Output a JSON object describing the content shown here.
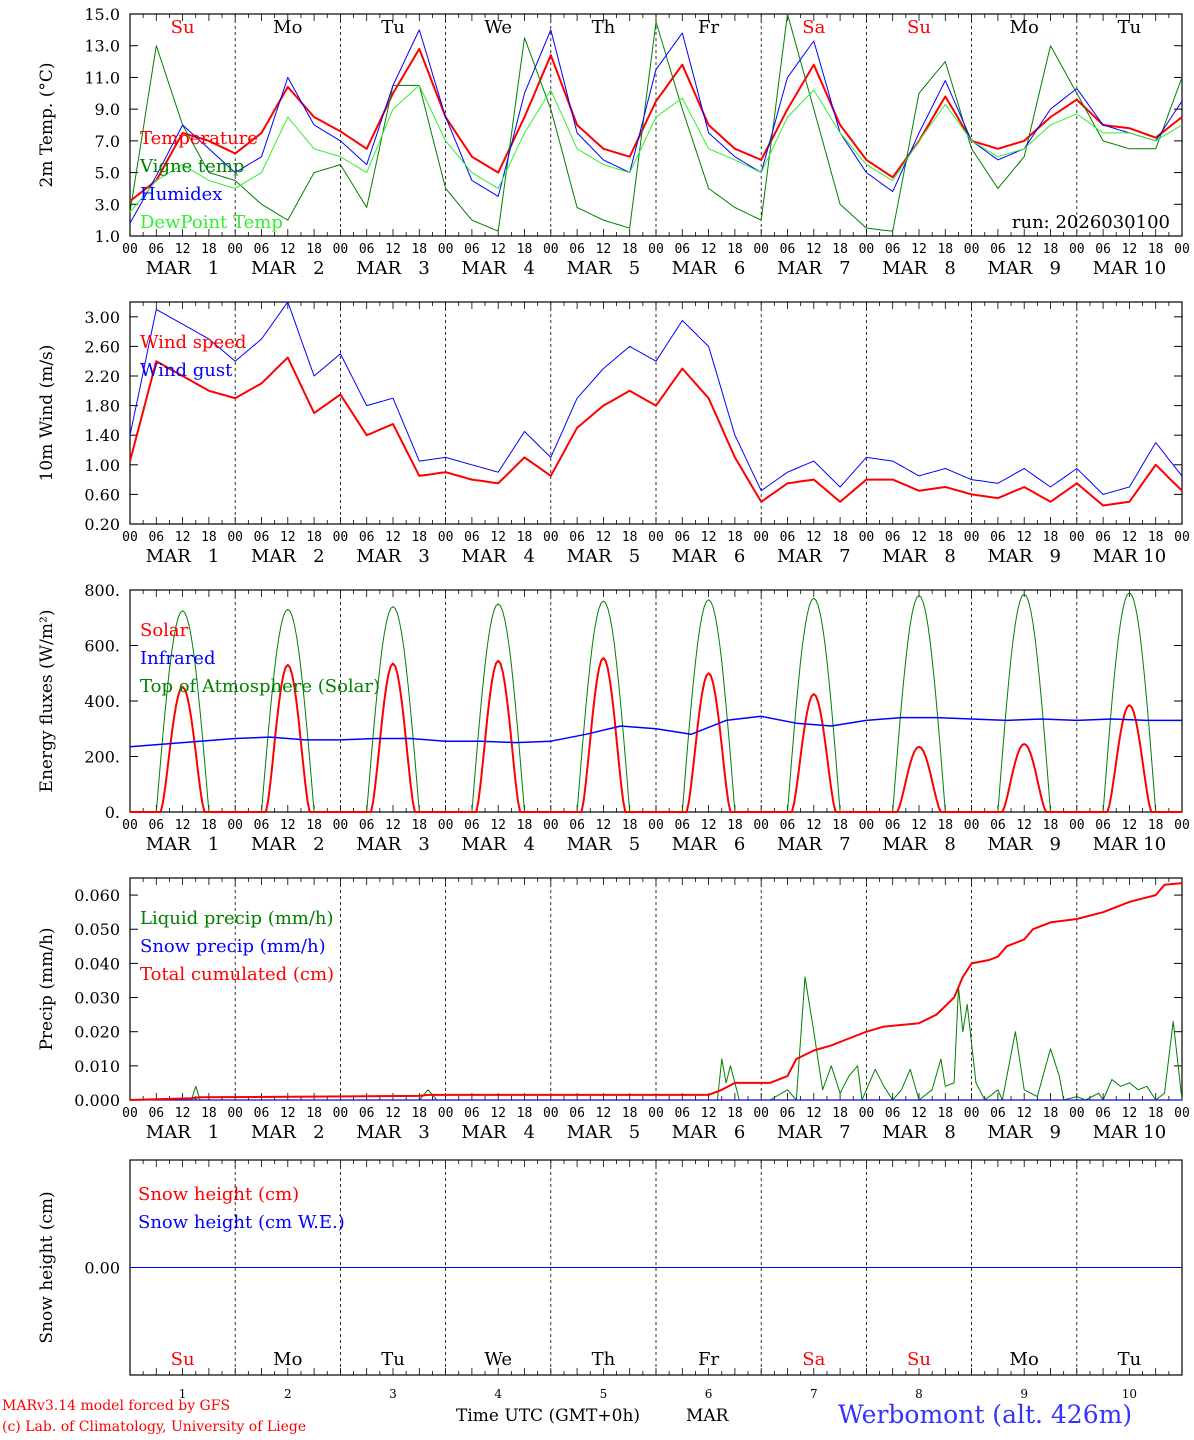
{
  "run_label": "run: 2026030100",
  "day_abbrev": [
    "Su",
    "Mo",
    "Tu",
    "We",
    "Th",
    "Fr",
    "Sa",
    "Su",
    "Mo",
    "Tu"
  ],
  "day_colors": [
    "#ff0000",
    "#000000",
    "#000000",
    "#000000",
    "#000000",
    "#000000",
    "#ff0000",
    "#ff0000",
    "#000000",
    "#000000"
  ],
  "date_labels": [
    "MAR   1",
    "MAR   2",
    "MAR   3",
    "MAR   4",
    "MAR   5",
    "MAR   6",
    "MAR   7",
    "MAR   8",
    "MAR   9",
    "MAR 10"
  ],
  "hour_ticks": [
    "00",
    "06",
    "12",
    "18"
  ],
  "bottom_day_numbers": [
    "1",
    "2",
    "3",
    "4",
    "5",
    "6",
    "7",
    "8",
    "9",
    "10"
  ],
  "footer": {
    "model_line": "MARv3.14 model forced by GFS",
    "credit_line": "(c) Lab. of Climatology, University of Liege",
    "time_label": "Time UTC (GMT+0h)",
    "month_label": "MAR",
    "station": "Werbomont (alt. 426m)"
  },
  "chart_data": [
    {
      "id": "temp",
      "type": "line",
      "ylabel": "2m Temp. (°C)",
      "ylim": [
        1.0,
        15.0
      ],
      "yticks": [
        "1.0",
        "3.0",
        "5.0",
        "7.0",
        "9.0",
        "11.0",
        "13.0",
        "15.0"
      ],
      "ytick_values": [
        1,
        3,
        5,
        7,
        9,
        11,
        13,
        15
      ],
      "x_hours": [
        0,
        6,
        12,
        18,
        24,
        30,
        36,
        42,
        48,
        54,
        60,
        66,
        72,
        78,
        84,
        90,
        96,
        102,
        108,
        114,
        120,
        126,
        132,
        138,
        144,
        150,
        156,
        162,
        168,
        174,
        180,
        186,
        192,
        198,
        204,
        210,
        216,
        222,
        228,
        234,
        240
      ],
      "series": [
        {
          "name": "Temperature",
          "color": "#ff0000",
          "width": 2,
          "values": [
            3.2,
            4.5,
            7.5,
            7.0,
            6.2,
            7.5,
            10.4,
            8.5,
            7.6,
            6.5,
            10.0,
            12.8,
            8.5,
            6.0,
            5.0,
            8.5,
            12.4,
            8.0,
            6.5,
            6.0,
            9.5,
            11.8,
            8.0,
            6.5,
            5.8,
            9.0,
            11.8,
            8.0,
            5.8,
            4.7,
            7.0,
            9.8,
            7.0,
            6.5,
            7.0,
            8.5,
            9.6,
            8.0,
            7.8,
            7.2,
            8.5
          ]
        },
        {
          "name": "Vigne temp",
          "color": "#008000",
          "width": 1,
          "values": [
            2.5,
            13.0,
            8.0,
            5.0,
            4.5,
            3.0,
            2.0,
            5.0,
            5.5,
            2.8,
            10.5,
            10.5,
            4.0,
            2.0,
            1.3,
            13.5,
            9.0,
            2.8,
            2.0,
            1.5,
            14.5,
            9.0,
            4.0,
            2.8,
            2.0,
            15.0,
            9.0,
            3.0,
            1.5,
            1.3,
            10.0,
            12.0,
            6.5,
            4.0,
            6.0,
            13.0,
            10.0,
            7.0,
            6.5,
            6.5,
            11.0
          ]
        },
        {
          "name": "Humidex",
          "color": "#0000ff",
          "width": 1,
          "values": [
            1.8,
            4.8,
            8.0,
            6.5,
            5.0,
            6.0,
            11.0,
            8.0,
            7.0,
            5.5,
            10.5,
            14.0,
            8.5,
            4.5,
            3.5,
            10.0,
            14.0,
            7.5,
            5.8,
            5.0,
            11.5,
            13.8,
            7.5,
            6.0,
            5.0,
            11.0,
            13.3,
            7.5,
            5.0,
            3.8,
            7.5,
            10.8,
            7.0,
            5.8,
            6.5,
            9.0,
            10.3,
            8.0,
            7.5,
            7.0,
            9.5
          ]
        },
        {
          "name": "DewPoint Temp",
          "color": "#33ee33",
          "width": 1,
          "values": [
            2.5,
            4.5,
            5.5,
            4.5,
            4.0,
            5.0,
            8.5,
            6.5,
            6.0,
            5.0,
            9.0,
            10.5,
            7.0,
            5.0,
            4.0,
            7.5,
            10.2,
            6.5,
            5.5,
            5.0,
            8.5,
            9.7,
            6.5,
            5.8,
            5.0,
            8.5,
            10.2,
            7.5,
            5.5,
            4.5,
            7.0,
            9.3,
            7.0,
            6.0,
            6.5,
            8.0,
            8.7,
            7.5,
            7.5,
            7.0,
            8.0
          ]
        }
      ],
      "legend": [
        "Temperature",
        "Vigne temp",
        "Humidex",
        "DewPoint Temp"
      ],
      "legend_colors": [
        "#ff0000",
        "#008000",
        "#0000ff",
        "#33ee33"
      ]
    },
    {
      "id": "wind",
      "type": "line",
      "ylabel": "10m Wind (m/s)",
      "ylim": [
        0.2,
        3.2
      ],
      "yticks": [
        "0.20",
        "0.60",
        "1.00",
        "1.40",
        "1.80",
        "2.20",
        "2.60",
        "3.00"
      ],
      "ytick_values": [
        0.2,
        0.6,
        1.0,
        1.4,
        1.8,
        2.2,
        2.6,
        3.0
      ],
      "x_hours": [
        0,
        6,
        12,
        18,
        24,
        30,
        36,
        42,
        48,
        54,
        60,
        66,
        72,
        78,
        84,
        90,
        96,
        102,
        108,
        114,
        120,
        126,
        132,
        138,
        144,
        150,
        156,
        162,
        168,
        174,
        180,
        186,
        192,
        198,
        204,
        210,
        216,
        222,
        228,
        234,
        240
      ],
      "series": [
        {
          "name": "Wind speed",
          "color": "#ff0000",
          "width": 2,
          "values": [
            1.05,
            2.4,
            2.2,
            2.0,
            1.9,
            2.1,
            2.45,
            1.7,
            1.95,
            1.4,
            1.55,
            0.85,
            0.9,
            0.8,
            0.75,
            1.1,
            0.85,
            1.5,
            1.8,
            2.0,
            1.8,
            2.3,
            1.9,
            1.1,
            0.5,
            0.75,
            0.8,
            0.5,
            0.8,
            0.8,
            0.65,
            0.7,
            0.6,
            0.55,
            0.7,
            0.5,
            0.75,
            0.45,
            0.5,
            1.0,
            0.65
          ]
        },
        {
          "name": "Wind gust",
          "color": "#0000ff",
          "width": 1,
          "values": [
            1.4,
            3.1,
            2.9,
            2.7,
            2.4,
            2.7,
            3.2,
            2.2,
            2.5,
            1.8,
            1.9,
            1.05,
            1.1,
            1.0,
            0.9,
            1.45,
            1.1,
            1.9,
            2.3,
            2.6,
            2.4,
            2.95,
            2.6,
            1.4,
            0.65,
            0.9,
            1.05,
            0.7,
            1.1,
            1.05,
            0.85,
            0.95,
            0.8,
            0.75,
            0.95,
            0.7,
            0.95,
            0.6,
            0.7,
            1.3,
            0.85
          ]
        }
      ],
      "legend": [
        "Wind speed",
        "Wind gust"
      ],
      "legend_colors": [
        "#ff0000",
        "#0000ff"
      ]
    },
    {
      "id": "energy",
      "type": "line",
      "ylabel": "Energy fluxes (W/m²)",
      "ylim": [
        0,
        800
      ],
      "yticks": [
        "0.",
        "200.",
        "400.",
        "600.",
        "800."
      ],
      "ytick_values": [
        0,
        200,
        400,
        600,
        800
      ],
      "diurnal": {
        "toa_peaks": [
          725,
          730,
          740,
          750,
          760,
          765,
          770,
          780,
          785,
          790
        ],
        "solar_peaks": [
          450,
          530,
          535,
          545,
          555,
          500,
          425,
          235,
          245,
          385
        ],
        "infrared_values": [
          235,
          245,
          255,
          265,
          270,
          260,
          260,
          265,
          265,
          255,
          255,
          250,
          255,
          280,
          310,
          300,
          280,
          330,
          345,
          320,
          310,
          330,
          340,
          340,
          335,
          330,
          335,
          330,
          335,
          330,
          330
        ]
      },
      "legend": [
        "Solar",
        "Infrared",
        "Top of Atmosphere (Solar)"
      ],
      "legend_colors": [
        "#ff0000",
        "#0000ff",
        "#008000"
      ]
    },
    {
      "id": "precip",
      "type": "line",
      "ylabel": "Precip (mm/h)",
      "ylim": [
        0,
        0.065
      ],
      "yticks": [
        "0.000",
        "0.010",
        "0.020",
        "0.030",
        "0.040",
        "0.050",
        "0.060"
      ],
      "ytick_values": [
        0,
        0.01,
        0.02,
        0.03,
        0.04,
        0.05,
        0.06
      ],
      "series": [
        {
          "name": "Liquid precip (mm/h)",
          "color": "#008000",
          "width": 1,
          "points": [
            [
              0,
              0
            ],
            [
              14,
              0
            ],
            [
              15,
              0.004
            ],
            [
              16,
              0
            ],
            [
              66,
              0
            ],
            [
              68,
              0.003
            ],
            [
              70,
              0
            ],
            [
              134,
              0
            ],
            [
              135,
              0.012
            ],
            [
              136,
              0.005
            ],
            [
              137,
              0.01
            ],
            [
              139,
              0
            ],
            [
              146,
              0
            ],
            [
              150,
              0.003
            ],
            [
              152,
              0
            ],
            [
              154,
              0.036
            ],
            [
              156,
              0.02
            ],
            [
              158,
              0.003
            ],
            [
              160,
              0.01
            ],
            [
              162,
              0.002
            ],
            [
              164,
              0.007
            ],
            [
              166,
              0.01
            ],
            [
              167,
              0
            ],
            [
              170,
              0.009
            ],
            [
              172,
              0.004
            ],
            [
              174,
              0
            ],
            [
              176,
              0.003
            ],
            [
              178,
              0.009
            ],
            [
              180,
              0
            ],
            [
              183,
              0.003
            ],
            [
              185,
              0.012
            ],
            [
              186,
              0.004
            ],
            [
              188,
              0.005
            ],
            [
              189,
              0.033
            ],
            [
              190,
              0.02
            ],
            [
              191,
              0.028
            ],
            [
              193,
              0.005
            ],
            [
              195,
              0
            ],
            [
              198,
              0.003
            ],
            [
              199,
              0
            ],
            [
              202,
              0.02
            ],
            [
              204,
              0.003
            ],
            [
              207,
              0.001
            ],
            [
              210,
              0.015
            ],
            [
              212,
              0.007
            ],
            [
              213,
              0
            ],
            [
              216,
              0.001
            ],
            [
              218,
              0
            ],
            [
              221,
              0.002
            ],
            [
              222,
              0
            ],
            [
              224,
              0.006
            ],
            [
              226,
              0.004
            ],
            [
              228,
              0.005
            ],
            [
              230,
              0.003
            ],
            [
              232,
              0.004
            ],
            [
              234,
              0
            ],
            [
              236,
              0.002
            ],
            [
              238,
              0.023
            ],
            [
              240,
              0
            ]
          ]
        },
        {
          "name": "Snow precip (mm/h)",
          "color": "#0000ff",
          "width": 1,
          "points": [
            [
              0,
              0
            ],
            [
              240,
              0
            ]
          ]
        },
        {
          "name": "Total cumulated (cm)",
          "color": "#ff0000",
          "width": 2,
          "points": [
            [
              0,
              0
            ],
            [
              14,
              0.0005
            ],
            [
              16,
              0.0008
            ],
            [
              66,
              0.0012
            ],
            [
              68,
              0.0015
            ],
            [
              132,
              0.0015
            ],
            [
              135,
              0.003
            ],
            [
              138,
              0.005
            ],
            [
              146,
              0.005
            ],
            [
              150,
              0.007
            ],
            [
              152,
              0.012
            ],
            [
              156,
              0.0145
            ],
            [
              160,
              0.016
            ],
            [
              164,
              0.018
            ],
            [
              168,
              0.02
            ],
            [
              172,
              0.0215
            ],
            [
              180,
              0.0225
            ],
            [
              184,
              0.025
            ],
            [
              188,
              0.03
            ],
            [
              190,
              0.036
            ],
            [
              192,
              0.04
            ],
            [
              196,
              0.041
            ],
            [
              198,
              0.042
            ],
            [
              200,
              0.045
            ],
            [
              204,
              0.047
            ],
            [
              206,
              0.05
            ],
            [
              210,
              0.052
            ],
            [
              216,
              0.053
            ],
            [
              222,
              0.055
            ],
            [
              228,
              0.058
            ],
            [
              234,
              0.06
            ],
            [
              236,
              0.063
            ],
            [
              240,
              0.0635
            ]
          ]
        }
      ],
      "legend": [
        "Liquid precip (mm/h)",
        "Snow precip (mm/h)",
        "Total cumulated (cm)"
      ],
      "legend_colors": [
        "#008000",
        "#0000ff",
        "#ff0000"
      ]
    },
    {
      "id": "snow",
      "type": "line",
      "ylabel": "Snow height (cm)",
      "ylim": [
        -1,
        1
      ],
      "yticks": [
        "0.00"
      ],
      "ytick_values": [
        0
      ],
      "series": [
        {
          "name": "Snow height (cm)",
          "color": "#ff0000",
          "width": 1,
          "points": [
            [
              0,
              0
            ],
            [
              240,
              0
            ]
          ]
        },
        {
          "name": "Snow height (cm W.E.)",
          "color": "#0000ff",
          "width": 1,
          "points": [
            [
              0,
              0
            ],
            [
              240,
              0
            ]
          ]
        }
      ],
      "legend": [
        "Snow height (cm)",
        "Snow height (cm W.E.)"
      ],
      "legend_colors": [
        "#ff0000",
        "#0000ff"
      ]
    }
  ]
}
